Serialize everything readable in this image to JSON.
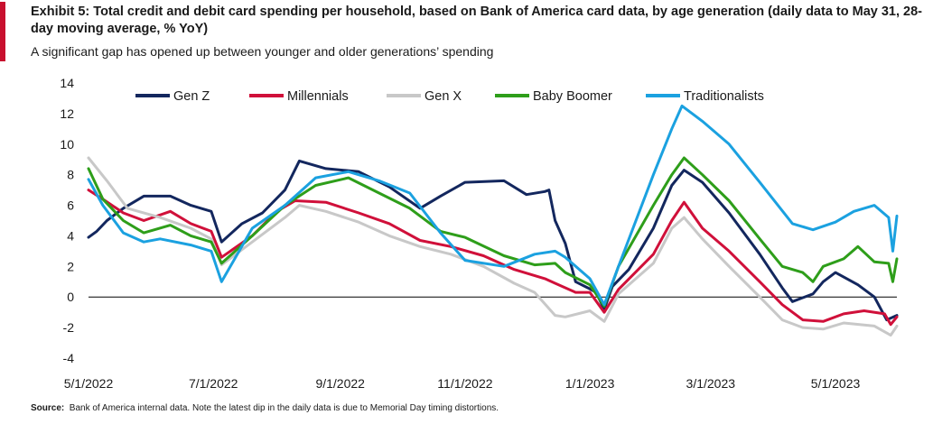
{
  "title": "Exhibit 5: Total credit and debit card spending per household, based on Bank of America card data, by age generation (daily  data to May 31, 28-day moving average, % YoY)",
  "subtitle": "A significant gap has opened up between younger and older generations’ spending",
  "source": {
    "label": "Source:",
    "text": "Bank of America internal data. Note the latest dip in the daily data is due to Memorial Day timing distortions."
  },
  "colors": {
    "accent": "#c8102e",
    "Gen Z": "#13275e",
    "Millennials": "#d0103a",
    "Gen X": "#c8c8c8",
    "Baby Boomer": "#2e9e1a",
    "Traditionalists": "#1ba1e0"
  },
  "chart_data": {
    "type": "line",
    "title": "",
    "xlabel": "",
    "ylabel": "",
    "ylim": [
      -4,
      14
    ],
    "yticks": [
      "-4",
      "-2",
      "0",
      "2",
      "4",
      "6",
      "8",
      "10",
      "12",
      "14"
    ],
    "xlim": [
      "5/1/2022",
      "5/31/2023"
    ],
    "xticks": [
      "5/1/2022",
      "7/1/2022",
      "9/1/2022",
      "11/1/2022",
      "1/1/2023",
      "3/1/2023",
      "5/1/2023"
    ],
    "grid": false,
    "zero_line": true,
    "legend_position": "top",
    "series": [
      {
        "name": "Gen Z",
        "points": [
          [
            "5/1/2022",
            3.9
          ],
          [
            "5/5/2022",
            4.3
          ],
          [
            "5/10/2022",
            5.0
          ],
          [
            "5/18/2022",
            5.8
          ],
          [
            "5/28/2022",
            6.6
          ],
          [
            "6/10/2022",
            6.6
          ],
          [
            "6/20/2022",
            6.0
          ],
          [
            "6/30/2022",
            5.6
          ],
          [
            "7/5/2022",
            3.6
          ],
          [
            "7/15/2022",
            4.8
          ],
          [
            "7/25/2022",
            5.5
          ],
          [
            "8/5/2022",
            7.0
          ],
          [
            "8/12/2022",
            8.9
          ],
          [
            "8/25/2022",
            8.4
          ],
          [
            "9/10/2022",
            8.2
          ],
          [
            "9/25/2022",
            7.2
          ],
          [
            "10/10/2022",
            5.8
          ],
          [
            "10/20/2022",
            6.6
          ],
          [
            "11/1/2022",
            7.5
          ],
          [
            "11/20/2022",
            7.6
          ],
          [
            "12/1/2022",
            6.7
          ],
          [
            "12/10/2022",
            6.9
          ],
          [
            "12/12/2022",
            7.0
          ],
          [
            "12/15/2022",
            5.0
          ],
          [
            "12/20/2022",
            3.5
          ],
          [
            "12/25/2022",
            1.0
          ],
          [
            "12/31/2022",
            0.6
          ],
          [
            "1/4/2023",
            0.3
          ],
          [
            "1/8/2023",
            -0.8
          ],
          [
            "1/12/2023",
            0.7
          ],
          [
            "1/20/2023",
            1.8
          ],
          [
            "2/1/2023",
            4.5
          ],
          [
            "2/10/2023",
            7.3
          ],
          [
            "2/16/2023",
            8.3
          ],
          [
            "2/25/2023",
            7.5
          ],
          [
            "3/10/2023",
            5.5
          ],
          [
            "3/25/2023",
            2.8
          ],
          [
            "4/5/2023",
            0.6
          ],
          [
            "4/10/2023",
            -0.3
          ],
          [
            "4/20/2023",
            0.2
          ],
          [
            "4/25/2023",
            1.0
          ],
          [
            "5/1/2023",
            1.6
          ],
          [
            "5/12/2023",
            0.8
          ],
          [
            "5/20/2023",
            0.0
          ],
          [
            "5/26/2023",
            -1.5
          ],
          [
            "5/31/2023",
            -1.2
          ]
        ]
      },
      {
        "name": "Millennials",
        "points": [
          [
            "5/1/2022",
            7.0
          ],
          [
            "5/8/2022",
            6.4
          ],
          [
            "5/18/2022",
            5.5
          ],
          [
            "5/28/2022",
            5.0
          ],
          [
            "6/10/2022",
            5.6
          ],
          [
            "6/20/2022",
            4.8
          ],
          [
            "6/30/2022",
            4.3
          ],
          [
            "7/5/2022",
            2.6
          ],
          [
            "7/20/2022",
            4.0
          ],
          [
            "8/1/2022",
            5.6
          ],
          [
            "8/10/2022",
            6.3
          ],
          [
            "8/25/2022",
            6.2
          ],
          [
            "9/10/2022",
            5.5
          ],
          [
            "9/25/2022",
            4.8
          ],
          [
            "10/10/2022",
            3.7
          ],
          [
            "10/25/2022",
            3.3
          ],
          [
            "11/10/2022",
            2.7
          ],
          [
            "11/25/2022",
            1.8
          ],
          [
            "12/10/2022",
            1.2
          ],
          [
            "12/15/2022",
            0.9
          ],
          [
            "12/25/2022",
            0.3
          ],
          [
            "1/1/2023",
            0.3
          ],
          [
            "1/8/2023",
            -1.0
          ],
          [
            "1/15/2023",
            0.5
          ],
          [
            "2/1/2023",
            2.8
          ],
          [
            "2/10/2023",
            5.0
          ],
          [
            "2/16/2023",
            6.2
          ],
          [
            "2/25/2023",
            4.5
          ],
          [
            "3/10/2023",
            3.0
          ],
          [
            "3/25/2023",
            1.0
          ],
          [
            "4/5/2023",
            -0.5
          ],
          [
            "4/15/2023",
            -1.5
          ],
          [
            "4/25/2023",
            -1.6
          ],
          [
            "5/5/2023",
            -1.1
          ],
          [
            "5/15/2023",
            -0.9
          ],
          [
            "5/25/2023",
            -1.1
          ],
          [
            "5/28/2023",
            -1.8
          ],
          [
            "5/31/2023",
            -1.3
          ]
        ]
      },
      {
        "name": "Gen X",
        "points": [
          [
            "5/1/2022",
            9.1
          ],
          [
            "5/10/2022",
            7.6
          ],
          [
            "5/20/2022",
            5.8
          ],
          [
            "6/5/2022",
            5.2
          ],
          [
            "6/20/2022",
            4.5
          ],
          [
            "6/30/2022",
            3.8
          ],
          [
            "7/5/2022",
            2.1
          ],
          [
            "7/20/2022",
            3.6
          ],
          [
            "8/5/2022",
            5.2
          ],
          [
            "8/12/2022",
            6.0
          ],
          [
            "8/25/2022",
            5.6
          ],
          [
            "9/10/2022",
            4.9
          ],
          [
            "9/25/2022",
            4.0
          ],
          [
            "10/10/2022",
            3.3
          ],
          [
            "10/25/2022",
            2.8
          ],
          [
            "11/10/2022",
            2.0
          ],
          [
            "11/25/2022",
            0.9
          ],
          [
            "12/5/2022",
            0.3
          ],
          [
            "12/15/2022",
            -1.2
          ],
          [
            "12/20/2022",
            -1.3
          ],
          [
            "1/1/2023",
            -0.9
          ],
          [
            "1/8/2023",
            -1.6
          ],
          [
            "1/15/2023",
            0.2
          ],
          [
            "2/1/2023",
            2.2
          ],
          [
            "2/10/2023",
            4.5
          ],
          [
            "2/16/2023",
            5.2
          ],
          [
            "2/25/2023",
            3.8
          ],
          [
            "3/10/2023",
            2.0
          ],
          [
            "3/25/2023",
            0.0
          ],
          [
            "4/5/2023",
            -1.5
          ],
          [
            "4/15/2023",
            -2.0
          ],
          [
            "4/25/2023",
            -2.1
          ],
          [
            "5/5/2023",
            -1.7
          ],
          [
            "5/20/2023",
            -1.9
          ],
          [
            "5/28/2023",
            -2.5
          ],
          [
            "5/31/2023",
            -1.9
          ]
        ]
      },
      {
        "name": "Baby Boomer",
        "points": [
          [
            "5/1/2022",
            8.4
          ],
          [
            "5/8/2022",
            6.4
          ],
          [
            "5/18/2022",
            5.0
          ],
          [
            "5/28/2022",
            4.2
          ],
          [
            "6/10/2022",
            4.7
          ],
          [
            "6/20/2022",
            4.0
          ],
          [
            "6/30/2022",
            3.6
          ],
          [
            "7/5/2022",
            2.2
          ],
          [
            "7/20/2022",
            4.0
          ],
          [
            "8/5/2022",
            6.0
          ],
          [
            "8/20/2022",
            7.3
          ],
          [
            "9/5/2022",
            7.8
          ],
          [
            "9/20/2022",
            6.8
          ],
          [
            "10/5/2022",
            5.8
          ],
          [
            "10/20/2022",
            4.3
          ],
          [
            "11/1/2022",
            3.9
          ],
          [
            "11/20/2022",
            2.7
          ],
          [
            "12/5/2022",
            2.1
          ],
          [
            "12/15/2022",
            2.2
          ],
          [
            "12/20/2022",
            1.6
          ],
          [
            "1/1/2023",
            0.8
          ],
          [
            "1/8/2023",
            -0.6
          ],
          [
            "1/15/2023",
            2.0
          ],
          [
            "2/1/2023",
            6.0
          ],
          [
            "2/10/2023",
            8.0
          ],
          [
            "2/16/2023",
            9.1
          ],
          [
            "2/25/2023",
            8.0
          ],
          [
            "3/10/2023",
            6.3
          ],
          [
            "3/25/2023",
            3.8
          ],
          [
            "4/5/2023",
            2.0
          ],
          [
            "4/15/2023",
            1.6
          ],
          [
            "4/20/2023",
            1.0
          ],
          [
            "4/25/2023",
            2.0
          ],
          [
            "5/5/2023",
            2.5
          ],
          [
            "5/12/2023",
            3.3
          ],
          [
            "5/20/2023",
            2.3
          ],
          [
            "5/27/2023",
            2.2
          ],
          [
            "5/29/2023",
            1.0
          ],
          [
            "5/31/2023",
            2.5
          ]
        ]
      },
      {
        "name": "Traditionalists",
        "points": [
          [
            "5/1/2022",
            7.7
          ],
          [
            "5/8/2022",
            6.0
          ],
          [
            "5/18/2022",
            4.2
          ],
          [
            "5/28/2022",
            3.6
          ],
          [
            "6/5/2022",
            3.8
          ],
          [
            "6/20/2022",
            3.4
          ],
          [
            "6/30/2022",
            3.0
          ],
          [
            "7/5/2022",
            1.0
          ],
          [
            "7/20/2022",
            4.5
          ],
          [
            "8/5/2022",
            6.0
          ],
          [
            "8/20/2022",
            7.8
          ],
          [
            "9/5/2022",
            8.2
          ],
          [
            "9/20/2022",
            7.6
          ],
          [
            "10/5/2022",
            6.8
          ],
          [
            "10/20/2022",
            4.2
          ],
          [
            "11/1/2022",
            2.4
          ],
          [
            "11/20/2022",
            2.0
          ],
          [
            "12/5/2022",
            2.8
          ],
          [
            "12/15/2022",
            3.0
          ],
          [
            "12/20/2022",
            2.6
          ],
          [
            "1/1/2023",
            1.2
          ],
          [
            "1/8/2023",
            -0.5
          ],
          [
            "1/15/2023",
            2.0
          ],
          [
            "2/1/2023",
            8.0
          ],
          [
            "2/10/2023",
            11.0
          ],
          [
            "2/15/2023",
            12.5
          ],
          [
            "2/25/2023",
            11.5
          ],
          [
            "3/10/2023",
            10.0
          ],
          [
            "3/25/2023",
            7.5
          ],
          [
            "4/10/2023",
            4.8
          ],
          [
            "4/20/2023",
            4.4
          ],
          [
            "5/1/2023",
            4.9
          ],
          [
            "5/10/2023",
            5.6
          ],
          [
            "5/20/2023",
            6.0
          ],
          [
            "5/27/2023",
            5.2
          ],
          [
            "5/29/2023",
            3.0
          ],
          [
            "5/31/2023",
            5.3
          ]
        ]
      }
    ]
  }
}
